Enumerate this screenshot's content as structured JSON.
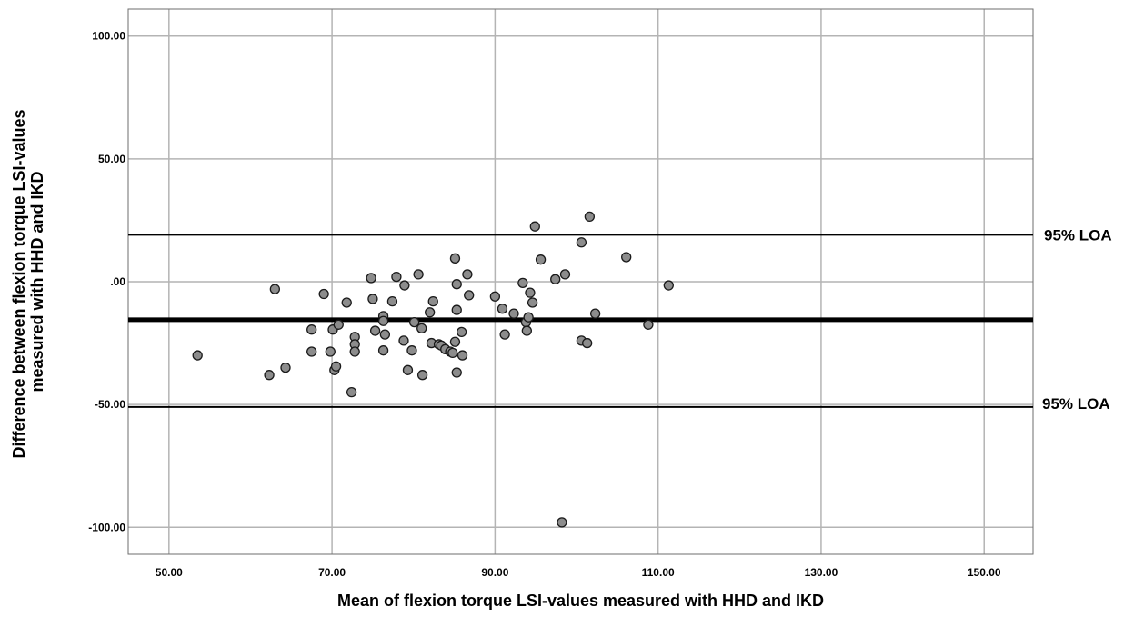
{
  "chart_data": {
    "type": "scatter",
    "xlabel": "Mean of flexion torque LSI-values measured with HHD and IKD",
    "ylabel_lines": [
      "Difference between flexion torque LSI-values",
      "measured with HHD and IKD"
    ],
    "xlim": [
      45,
      156
    ],
    "ylim": [
      -111,
      111
    ],
    "x_ticks": [
      50,
      70,
      90,
      110,
      130,
      150
    ],
    "x_tick_labels": [
      "50.00",
      "70.00",
      "90.00",
      "110.00",
      "130.00",
      "150.00"
    ],
    "y_ticks": [
      100,
      50,
      0,
      -50,
      -100
    ],
    "y_tick_labels": [
      "100.00",
      "50.00",
      ".00",
      "-50.00",
      "-100.00"
    ],
    "grid": true,
    "mean_line": -15.5,
    "loa_upper": 19,
    "loa_lower": -51,
    "loa_upper_label": "95% LOA",
    "loa_lower_label": "95% LOA",
    "points": [
      [
        53.5,
        -30
      ],
      [
        62.3,
        -38
      ],
      [
        63,
        -3
      ],
      [
        64.3,
        -35
      ],
      [
        67.5,
        -19.5
      ],
      [
        67.5,
        -28.5
      ],
      [
        69,
        -5
      ],
      [
        69.8,
        -28.5
      ],
      [
        70.1,
        -19.5
      ],
      [
        70.3,
        -36
      ],
      [
        70.5,
        -34.5
      ],
      [
        70.8,
        -17.5
      ],
      [
        71.8,
        -8.5
      ],
      [
        72.4,
        -45
      ],
      [
        72.8,
        -22.5
      ],
      [
        72.8,
        -25.5
      ],
      [
        72.8,
        -28.5
      ],
      [
        74.8,
        1.5
      ],
      [
        75,
        -7
      ],
      [
        75.3,
        -20
      ],
      [
        76.3,
        -14
      ],
      [
        76.3,
        -16
      ],
      [
        76.3,
        -28
      ],
      [
        76.5,
        -21.5
      ],
      [
        77.4,
        -8
      ],
      [
        77.9,
        2
      ],
      [
        78.9,
        -1.5
      ],
      [
        78.8,
        -24
      ],
      [
        79.3,
        -36
      ],
      [
        79.8,
        -28
      ],
      [
        80.1,
        -16.5
      ],
      [
        80.6,
        3
      ],
      [
        81,
        -19
      ],
      [
        81.1,
        -38
      ],
      [
        82,
        -12.5
      ],
      [
        82.2,
        -25
      ],
      [
        82.4,
        -8
      ],
      [
        83.1,
        -25.5
      ],
      [
        83.4,
        -26
      ],
      [
        83.9,
        -27.5
      ],
      [
        84.5,
        -28.5
      ],
      [
        84.8,
        -29
      ],
      [
        85.1,
        -24.5
      ],
      [
        85.1,
        9.5
      ],
      [
        85.3,
        -11.5
      ],
      [
        85.3,
        -1
      ],
      [
        85.3,
        -37
      ],
      [
        85.9,
        -20.5
      ],
      [
        86,
        -30
      ],
      [
        86.6,
        3
      ],
      [
        86.8,
        -5.5
      ],
      [
        90,
        -6
      ],
      [
        90.9,
        -11
      ],
      [
        91.2,
        -21.5
      ],
      [
        92.3,
        -13
      ],
      [
        93.4,
        -0.5
      ],
      [
        93.8,
        -16.5
      ],
      [
        93.9,
        -20
      ],
      [
        94.1,
        -14.5
      ],
      [
        94.3,
        -4.5
      ],
      [
        94.6,
        -8.5
      ],
      [
        94.9,
        22.5
      ],
      [
        95.6,
        9
      ],
      [
        97.4,
        1
      ],
      [
        98.2,
        -98
      ],
      [
        98.6,
        3
      ],
      [
        100.6,
        16
      ],
      [
        100.6,
        -24
      ],
      [
        101.3,
        -25
      ],
      [
        101.6,
        26.5
      ],
      [
        102.3,
        -13
      ],
      [
        106.1,
        10
      ],
      [
        108.8,
        -17.5
      ],
      [
        111.3,
        -1.5
      ]
    ]
  }
}
